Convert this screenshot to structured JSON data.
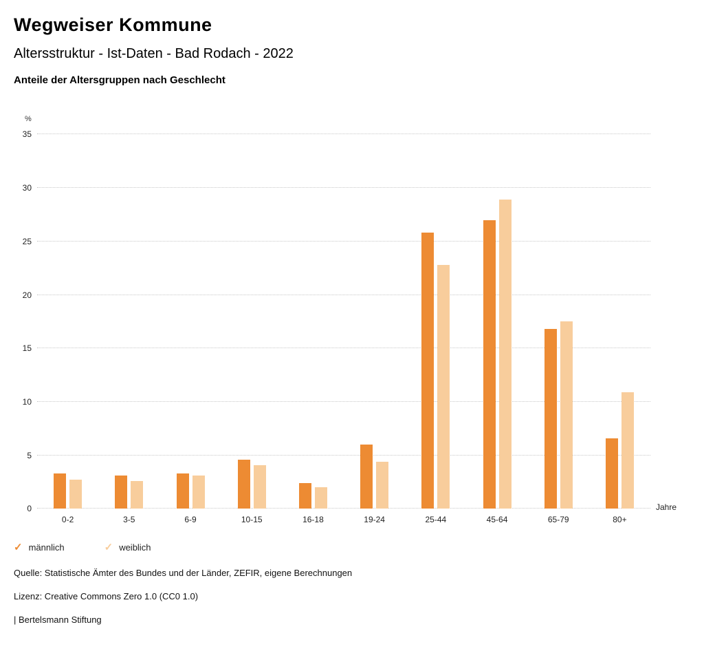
{
  "header": {
    "title": "Wegweiser Kommune",
    "subtitle": "Altersstruktur - Ist-Daten - Bad Rodach - 2022"
  },
  "chart_data": {
    "type": "bar",
    "title": "Anteile der Altersgruppen nach Geschlecht",
    "ylabel": "%",
    "xlabel": "Jahre",
    "ylim": [
      0,
      35
    ],
    "ytick_step": 5,
    "grid": true,
    "legend_position": "bottom",
    "categories": [
      "0-2",
      "3-5",
      "6-9",
      "10-15",
      "16-18",
      "19-24",
      "25-44",
      "45-64",
      "65-79",
      "80+"
    ],
    "series": [
      {
        "name": "männlich",
        "color": "#ED8B33",
        "values": [
          3.3,
          3.1,
          3.3,
          4.6,
          2.4,
          6.0,
          25.8,
          27.0,
          16.8,
          6.6
        ]
      },
      {
        "name": "weiblich",
        "color": "#F8CD9C",
        "values": [
          2.7,
          2.6,
          3.1,
          4.1,
          2.0,
          4.4,
          22.8,
          28.9,
          17.5,
          10.9
        ]
      }
    ]
  },
  "legend": {
    "items": [
      {
        "label": "männlich",
        "color": "#ED8B33",
        "icon": "check-icon"
      },
      {
        "label": "weiblich",
        "color": "#F8CD9C",
        "icon": "check-icon"
      }
    ]
  },
  "footer": {
    "source": "Quelle: Statistische Ämter des Bundes und der Länder, ZEFIR, eigene Berechnungen",
    "license": "Lizenz: Creative Commons Zero 1.0 (CC0 1.0)",
    "attribution": "| Bertelsmann Stiftung"
  }
}
